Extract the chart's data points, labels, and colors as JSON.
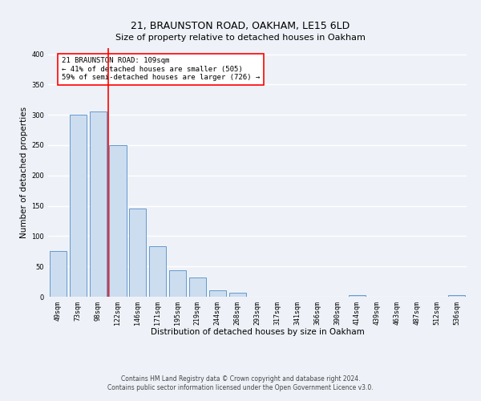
{
  "title": "21, BRAUNSTON ROAD, OAKHAM, LE15 6LD",
  "subtitle": "Size of property relative to detached houses in Oakham",
  "xlabel": "Distribution of detached houses by size in Oakham",
  "ylabel": "Number of detached properties",
  "bar_labels": [
    "49sqm",
    "73sqm",
    "98sqm",
    "122sqm",
    "146sqm",
    "171sqm",
    "195sqm",
    "219sqm",
    "244sqm",
    "268sqm",
    "293sqm",
    "317sqm",
    "341sqm",
    "366sqm",
    "390sqm",
    "414sqm",
    "439sqm",
    "463sqm",
    "487sqm",
    "512sqm",
    "536sqm"
  ],
  "bar_values": [
    75,
    300,
    305,
    250,
    145,
    83,
    44,
    32,
    10,
    6,
    0,
    0,
    0,
    0,
    0,
    2,
    0,
    0,
    0,
    0,
    2
  ],
  "bar_color": "#ccddf0",
  "bar_edge_color": "#6699cc",
  "vline_x": 2.5,
  "vline_color": "red",
  "annotation_text": "21 BRAUNSTON ROAD: 109sqm\n← 41% of detached houses are smaller (505)\n59% of semi-detached houses are larger (726) →",
  "annotation_box_edgecolor": "red",
  "annotation_box_facecolor": "white",
  "ylim": [
    0,
    410
  ],
  "footnote1": "Contains HM Land Registry data © Crown copyright and database right 2024.",
  "footnote2": "Contains public sector information licensed under the Open Government Licence v3.0.",
  "background_color": "#eef2f8",
  "grid_color": "white",
  "title_fontsize": 9,
  "subtitle_fontsize": 8,
  "axis_label_fontsize": 7.5,
  "tick_fontsize": 6,
  "annotation_fontsize": 6.5,
  "footnote_fontsize": 5.5
}
